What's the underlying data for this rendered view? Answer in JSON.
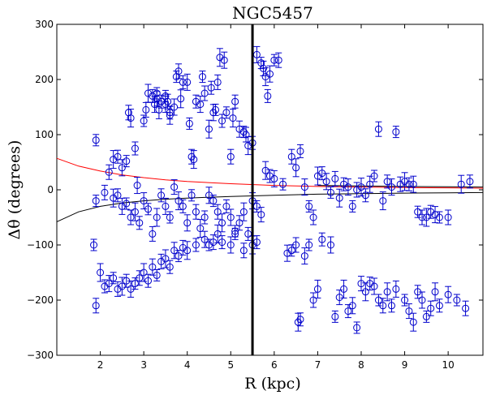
{
  "chart_data": {
    "type": "scatter",
    "title": "NGC5457",
    "xlabel": "R (kpc)",
    "ylabel": "Δθ (degrees)",
    "xlim": [
      1.0,
      10.8
    ],
    "ylim": [
      -300,
      300
    ],
    "xticks": [
      2,
      3,
      4,
      5,
      6,
      7,
      8,
      9,
      10
    ],
    "yticks": [
      -300,
      -200,
      -100,
      0,
      100,
      200,
      300
    ],
    "vertical_line_x": 5.5,
    "colors": {
      "points": "#0000cc",
      "upper_curve": "#ff0000",
      "lower_curve": "#000000",
      "vline": "#000000"
    },
    "curves": [
      {
        "name": "upper",
        "color": "#ff0000",
        "x": [
          1.0,
          1.5,
          2.0,
          2.5,
          3.0,
          3.5,
          4.0,
          5.0,
          6.0,
          7.0,
          8.0,
          9.0,
          10.0,
          10.8
        ],
        "y": [
          57,
          43,
          34,
          27,
          22,
          18,
          15,
          11,
          8,
          6,
          5,
          4,
          3.5,
          3
        ]
      },
      {
        "name": "lower",
        "color": "#000000",
        "x": [
          1.0,
          1.5,
          2.0,
          2.5,
          3.0,
          3.5,
          4.0,
          5.0,
          6.0,
          7.0,
          8.0,
          9.0,
          10.0,
          10.8
        ],
        "y": [
          -58,
          -40,
          -30,
          -24,
          -20,
          -17,
          -15,
          -12,
          -10,
          -8,
          -7,
          -6,
          -5.5,
          -5
        ]
      },
      {
        "name": "right-extension",
        "color": "#000000",
        "x": [
          7.0,
          8.0,
          9.0,
          10.0,
          10.8
        ],
        "y": [
          8,
          7,
          6,
          5.5,
          5
        ]
      }
    ],
    "series": [
      {
        "name": "upper-group",
        "x": [
          1.9,
          2.2,
          2.3,
          2.4,
          2.5,
          2.6,
          2.65,
          2.7,
          2.8,
          2.85,
          3.0,
          3.05,
          3.1,
          3.2,
          3.25,
          3.3,
          3.3,
          3.35,
          3.4,
          3.5,
          3.5,
          3.55,
          3.6,
          3.6,
          3.7,
          3.75,
          3.8,
          3.85,
          3.9,
          4.0,
          4.05,
          4.1,
          4.15,
          4.2,
          4.3,
          4.35,
          4.4,
          4.5,
          4.55,
          4.6,
          4.65,
          4.7,
          4.75,
          4.8,
          4.85,
          4.9,
          5.0,
          5.05,
          5.1,
          5.2,
          5.3,
          5.35,
          5.4,
          5.5,
          5.6,
          5.7,
          5.75,
          5.8,
          5.85,
          5.9,
          6.0,
          6.1
        ],
        "y": [
          90,
          32,
          55,
          60,
          40,
          52,
          140,
          130,
          75,
          8,
          125,
          145,
          175,
          170,
          155,
          175,
          165,
          145,
          160,
          155,
          170,
          160,
          135,
          140,
          150,
          205,
          215,
          165,
          195,
          195,
          120,
          60,
          55,
          160,
          155,
          205,
          175,
          110,
          185,
          140,
          145,
          195,
          240,
          125,
          235,
          140,
          60,
          130,
          160,
          110,
          105,
          100,
          80,
          85,
          245,
          230,
          220,
          205,
          170,
          210,
          235,
          235
        ]
      },
      {
        "name": "middle-group",
        "x": [
          1.9,
          2.1,
          2.3,
          2.4,
          2.5,
          2.6,
          2.7,
          2.8,
          2.9,
          3.0,
          3.1,
          3.2,
          3.3,
          3.4,
          3.5,
          3.6,
          3.7,
          3.8,
          3.9,
          4.0,
          4.1,
          4.2,
          4.3,
          4.4,
          4.5,
          4.6,
          4.7,
          4.8,
          4.9,
          5.0,
          5.1,
          5.2,
          5.3,
          5.4,
          5.5,
          5.6,
          5.7,
          5.8,
          5.9,
          6.0,
          6.2,
          6.4,
          6.5,
          6.6,
          6.7,
          6.8,
          6.9,
          7.0,
          7.1,
          7.2,
          7.3,
          7.4,
          7.5,
          7.6,
          7.7,
          7.8,
          7.9,
          8.0,
          8.1,
          8.2,
          8.3,
          8.4,
          8.5,
          8.6,
          8.7,
          8.8,
          8.9,
          9.0,
          9.1,
          9.2,
          9.3,
          9.4,
          9.5,
          9.6,
          9.7,
          9.8,
          10.0,
          10.3,
          10.5
        ],
        "y": [
          -20,
          -5,
          -15,
          -10,
          -30,
          -25,
          -50,
          -40,
          -60,
          -20,
          -35,
          -80,
          -50,
          -10,
          -30,
          -50,
          5,
          -20,
          -30,
          -60,
          -10,
          -40,
          -70,
          -50,
          -10,
          -20,
          -40,
          -60,
          -30,
          -50,
          -75,
          -60,
          -40,
          -80,
          -20,
          -30,
          -45,
          35,
          25,
          20,
          10,
          60,
          40,
          70,
          5,
          -30,
          -50,
          25,
          30,
          15,
          -5,
          20,
          -15,
          10,
          5,
          -30,
          0,
          5,
          -10,
          10,
          25,
          110,
          -20,
          15,
          5,
          105,
          10,
          15,
          10,
          10,
          -40,
          -50,
          -50,
          -40,
          -45,
          -50,
          -50,
          10,
          15
        ]
      },
      {
        "name": "lower-group",
        "x": [
          1.85,
          1.9,
          2.0,
          2.1,
          2.2,
          2.3,
          2.4,
          2.5,
          2.6,
          2.7,
          2.8,
          2.9,
          3.0,
          3.1,
          3.2,
          3.3,
          3.4,
          3.5,
          3.6,
          3.7,
          3.8,
          3.9,
          4.0,
          4.2,
          4.4,
          4.5,
          4.6,
          4.7,
          4.8,
          5.0,
          5.1,
          5.3,
          5.5,
          5.6,
          6.3,
          6.4,
          6.5,
          6.55,
          6.6,
          6.7,
          6.8,
          6.9,
          7.0,
          7.1,
          7.3,
          7.4,
          7.5,
          7.6,
          7.7,
          7.8,
          7.9,
          8.0,
          8.1,
          8.2,
          8.3,
          8.4,
          8.5,
          8.6,
          8.7,
          8.8,
          9.0,
          9.1,
          9.2,
          9.3,
          9.4,
          9.5,
          9.6,
          9.7,
          9.8,
          10.0,
          10.2,
          10.4
        ],
        "y": [
          -100,
          -210,
          -150,
          -175,
          -170,
          -160,
          -180,
          -175,
          -165,
          -180,
          -170,
          -160,
          -150,
          -165,
          -140,
          -155,
          -130,
          -125,
          -140,
          -110,
          -120,
          -105,
          -110,
          -100,
          -90,
          -100,
          -95,
          -80,
          -95,
          -100,
          -80,
          -110,
          -100,
          -95,
          -115,
          -110,
          -100,
          -240,
          -235,
          -120,
          -100,
          -200,
          -180,
          -90,
          -100,
          -230,
          -195,
          -180,
          -220,
          -210,
          -250,
          -170,
          -185,
          -170,
          -175,
          -200,
          -210,
          -185,
          -210,
          -180,
          -200,
          -220,
          -240,
          -185,
          -200,
          -230,
          -215,
          -185,
          -210,
          -190,
          -200,
          -215
        ]
      }
    ]
  }
}
